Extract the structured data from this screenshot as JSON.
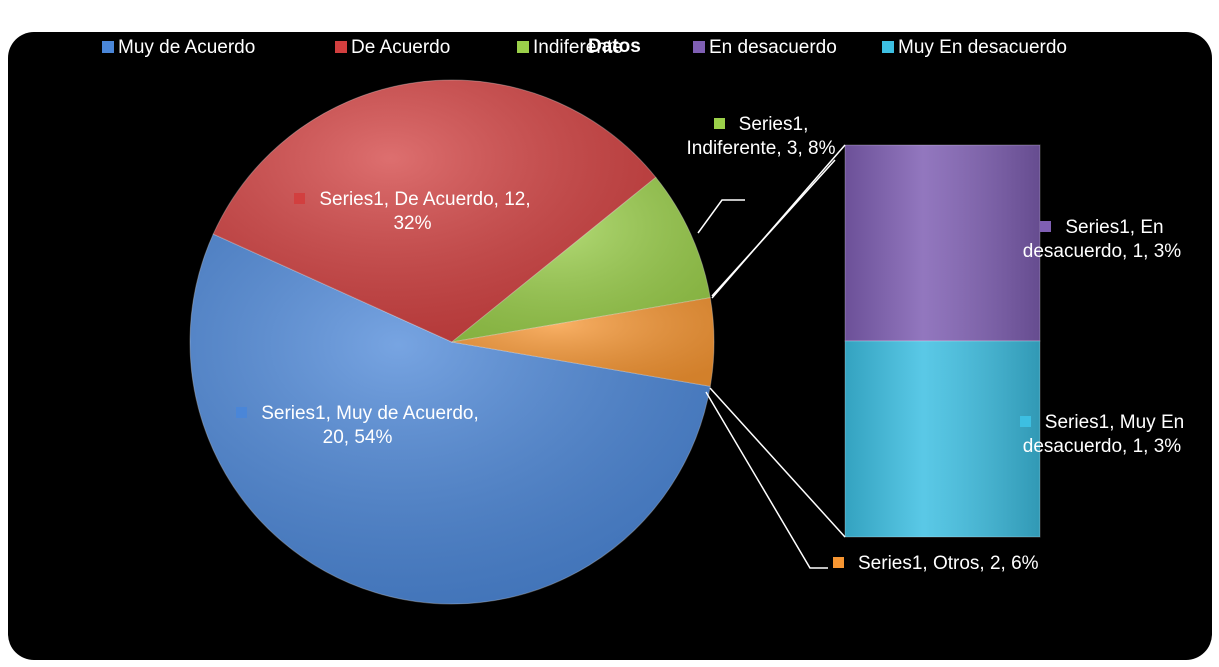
{
  "chart_data": {
    "type": "bar_of_pie",
    "title": "Datos",
    "pie": {
      "categories": [
        "Muy de Acuerdo",
        "De Acuerdo",
        "Indiferente",
        "Otros"
      ],
      "values": [
        20,
        12,
        3,
        2
      ],
      "value_labels": [
        "Series1, Muy de Acuerdo, 20, 54%",
        "Series1, De Acuerdo, 12, 32%",
        "Series1, Indiferente, 3, 8%",
        "Series1, Otros, 2, 6%"
      ],
      "colors": [
        "#4a86d8",
        "#d23f3f",
        "#9bd04a",
        "#f79632"
      ]
    },
    "bar": {
      "categories": [
        "En desacuerdo",
        "Muy En desacuerdo"
      ],
      "values": [
        1,
        1
      ],
      "value_labels": [
        "Series1, En desacuerdo, 1, 3%",
        "Series1, Muy En desacuerdo, 1, 3%"
      ],
      "colors": [
        "#7f5fb3",
        "#3dbfe2"
      ]
    }
  }
}
